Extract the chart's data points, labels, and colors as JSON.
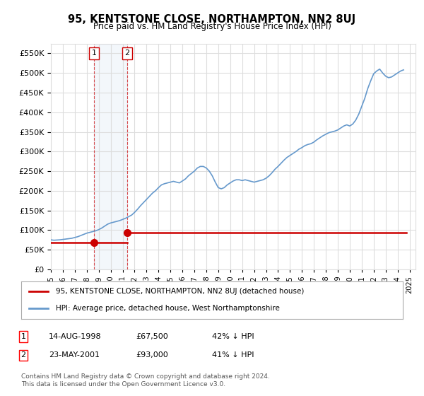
{
  "title": "95, KENTSTONE CLOSE, NORTHAMPTON, NN2 8UJ",
  "subtitle": "Price paid vs. HM Land Registry's House Price Index (HPI)",
  "hpi_label": "HPI: Average price, detached house, West Northamptonshire",
  "property_label": "95, KENTSTONE CLOSE, NORTHAMPTON, NN2 8UJ (detached house)",
  "ylabel_ticks": [
    "£0",
    "£50K",
    "£100K",
    "£150K",
    "£200K",
    "£250K",
    "£300K",
    "£350K",
    "£400K",
    "£450K",
    "£500K",
    "£550K"
  ],
  "ytick_values": [
    0,
    50000,
    100000,
    150000,
    200000,
    250000,
    300000,
    350000,
    400000,
    450000,
    500000,
    550000
  ],
  "ylim": [
    0,
    575000
  ],
  "xlim_start": 1995.0,
  "xlim_end": 2025.5,
  "transaction1_date": 1998.62,
  "transaction1_price": 67500,
  "transaction1_label": "1",
  "transaction2_date": 2001.39,
  "transaction2_price": 93000,
  "transaction2_label": "2",
  "table_rows": [
    {
      "num": "1",
      "date": "14-AUG-1998",
      "price": "£67,500",
      "hpi": "42% ↓ HPI"
    },
    {
      "num": "2",
      "date": "23-MAY-2001",
      "price": "£93,000",
      "hpi": "41% ↓ HPI"
    }
  ],
  "footer_text": "Contains HM Land Registry data © Crown copyright and database right 2024.\nThis data is licensed under the Open Government Licence v3.0.",
  "property_color": "#cc0000",
  "hpi_color": "#6699cc",
  "background_color": "#ffffff",
  "grid_color": "#dddddd",
  "vline_color": "#cc0000",
  "vline_color2": "#6699cc",
  "hpi_data": {
    "years": [
      1995.0,
      1995.25,
      1995.5,
      1995.75,
      1996.0,
      1996.25,
      1996.5,
      1996.75,
      1997.0,
      1997.25,
      1997.5,
      1997.75,
      1998.0,
      1998.25,
      1998.5,
      1998.75,
      1999.0,
      1999.25,
      1999.5,
      1999.75,
      2000.0,
      2000.25,
      2000.5,
      2000.75,
      2001.0,
      2001.25,
      2001.5,
      2001.75,
      2002.0,
      2002.25,
      2002.5,
      2002.75,
      2003.0,
      2003.25,
      2003.5,
      2003.75,
      2004.0,
      2004.25,
      2004.5,
      2004.75,
      2005.0,
      2005.25,
      2005.5,
      2005.75,
      2006.0,
      2006.25,
      2006.5,
      2006.75,
      2007.0,
      2007.25,
      2007.5,
      2007.75,
      2008.0,
      2008.25,
      2008.5,
      2008.75,
      2009.0,
      2009.25,
      2009.5,
      2009.75,
      2010.0,
      2010.25,
      2010.5,
      2010.75,
      2011.0,
      2011.25,
      2011.5,
      2011.75,
      2012.0,
      2012.25,
      2012.5,
      2012.75,
      2013.0,
      2013.25,
      2013.5,
      2013.75,
      2014.0,
      2014.25,
      2014.5,
      2014.75,
      2015.0,
      2015.25,
      2015.5,
      2015.75,
      2016.0,
      2016.25,
      2016.5,
      2016.75,
      2017.0,
      2017.25,
      2017.5,
      2017.75,
      2018.0,
      2018.25,
      2018.5,
      2018.75,
      2019.0,
      2019.25,
      2019.5,
      2019.75,
      2020.0,
      2020.25,
      2020.5,
      2020.75,
      2021.0,
      2021.25,
      2021.5,
      2021.75,
      2022.0,
      2022.25,
      2022.5,
      2022.75,
      2023.0,
      2023.25,
      2023.5,
      2023.75,
      2024.0,
      2024.25,
      2024.5
    ],
    "values": [
      75000,
      74000,
      74500,
      75000,
      76000,
      77000,
      78000,
      79000,
      81000,
      83000,
      86000,
      89000,
      92000,
      94000,
      96000,
      98000,
      101000,
      105000,
      110000,
      115000,
      118000,
      120000,
      122000,
      124000,
      127000,
      130000,
      134000,
      138000,
      145000,
      153000,
      162000,
      170000,
      178000,
      186000,
      194000,
      200000,
      208000,
      215000,
      218000,
      220000,
      222000,
      224000,
      222000,
      220000,
      225000,
      230000,
      238000,
      244000,
      250000,
      258000,
      262000,
      262000,
      258000,
      250000,
      238000,
      222000,
      208000,
      205000,
      208000,
      215000,
      220000,
      225000,
      228000,
      228000,
      226000,
      228000,
      226000,
      224000,
      222000,
      224000,
      226000,
      228000,
      232000,
      238000,
      246000,
      255000,
      262000,
      270000,
      278000,
      285000,
      290000,
      295000,
      300000,
      306000,
      310000,
      315000,
      318000,
      320000,
      324000,
      330000,
      335000,
      340000,
      344000,
      348000,
      350000,
      352000,
      355000,
      360000,
      365000,
      368000,
      365000,
      370000,
      380000,
      395000,
      415000,
      435000,
      460000,
      480000,
      498000,
      505000,
      510000,
      500000,
      492000,
      488000,
      490000,
      495000,
      500000,
      505000,
      508000
    ]
  },
  "property_data": {
    "years": [
      1998.62,
      2001.39
    ],
    "values": [
      67500,
      93000
    ]
  }
}
